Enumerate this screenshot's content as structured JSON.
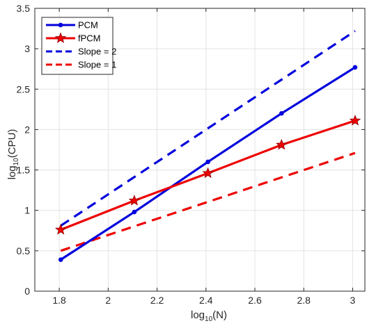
{
  "chart_data": {
    "type": "line",
    "title": "",
    "xlabel": {
      "base": "log",
      "sub": "10",
      "rest": "(N)"
    },
    "ylabel": {
      "base": "log",
      "sub": "10",
      "rest": "(CPU)"
    },
    "xlim": [
      1.7,
      3.05
    ],
    "ylim": [
      0,
      3.5
    ],
    "xticks": [
      1.8,
      2,
      2.2,
      2.4,
      2.6,
      2.8,
      3
    ],
    "xtick_labels": [
      "1.8",
      "2",
      "2.2",
      "2.4",
      "2.6",
      "2.8",
      "3"
    ],
    "yticks": [
      0,
      0.5,
      1,
      1.5,
      2,
      2.5,
      3,
      3.5
    ],
    "ytick_labels": [
      "0",
      "0.5",
      "1",
      "1.5",
      "2",
      "2.5",
      "3",
      "3.5"
    ],
    "grid": true,
    "legend_position": "top-left",
    "series": [
      {
        "name": "PCM",
        "color": "#0000dd",
        "style": "solid",
        "marker": "dot",
        "x": [
          1.806,
          2.107,
          2.408,
          2.709,
          3.01
        ],
        "y": [
          0.39,
          0.98,
          1.6,
          2.2,
          2.77
        ]
      },
      {
        "name": "fPCM",
        "color": "#ee0000",
        "style": "solid",
        "marker": "star",
        "x": [
          1.806,
          2.107,
          2.408,
          2.709,
          3.01
        ],
        "y": [
          0.76,
          1.12,
          1.46,
          1.81,
          2.11
        ]
      },
      {
        "name": "Slope = 2",
        "color": "#0000dd",
        "style": "dashed",
        "marker": "none",
        "x": [
          1.806,
          3.01
        ],
        "y": [
          0.81,
          3.22
        ]
      },
      {
        "name": "Slope = 1",
        "color": "#ee0000",
        "style": "dashed",
        "marker": "none",
        "x": [
          1.806,
          3.01
        ],
        "y": [
          0.5,
          1.71
        ]
      }
    ]
  }
}
